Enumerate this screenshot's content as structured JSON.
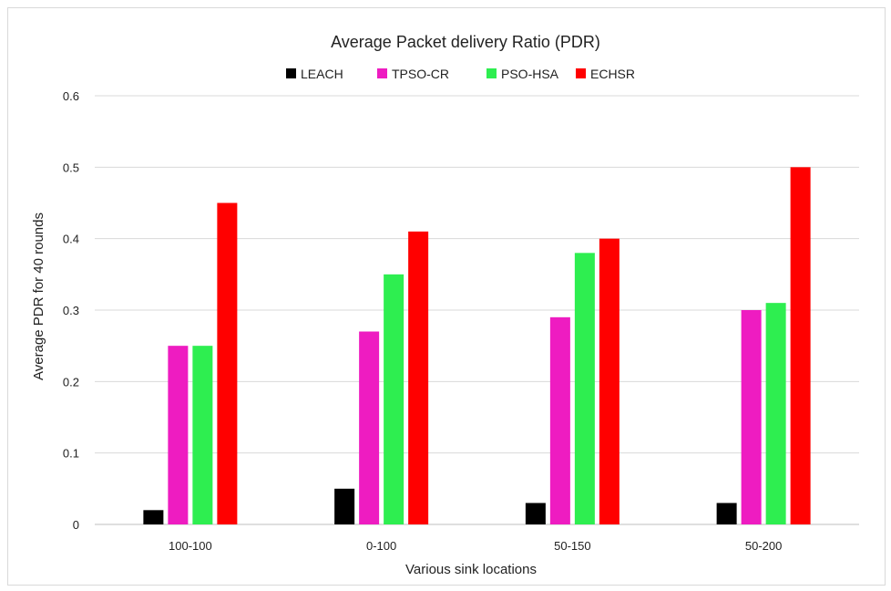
{
  "chart_data": {
    "type": "bar",
    "title": "Average Packet delivery Ratio (PDR)",
    "xlabel": "Various sink locations",
    "ylabel": "Average PDR for 40 rounds",
    "categories": [
      "100-100",
      "0-100",
      "50-150",
      "50-200"
    ],
    "series": [
      {
        "name": "LEACH",
        "color": "#000000",
        "values": [
          0.02,
          0.05,
          0.03,
          0.03
        ]
      },
      {
        "name": "TPSO-CR",
        "color": "#ee1cc1",
        "values": [
          0.25,
          0.27,
          0.29,
          0.3
        ]
      },
      {
        "name": "PSO-HSA",
        "color": "#2eee50",
        "values": [
          0.25,
          0.35,
          0.38,
          0.31
        ]
      },
      {
        "name": "ECHSR",
        "color": "#ff0000",
        "values": [
          0.45,
          0.41,
          0.4,
          0.5
        ]
      }
    ],
    "ylim": [
      0,
      0.6
    ],
    "yticks": [
      "0",
      "0.1",
      "0.2",
      "0.3",
      "0.4",
      "0.5",
      "0.6"
    ],
    "grid": true,
    "legend": "top-center"
  }
}
